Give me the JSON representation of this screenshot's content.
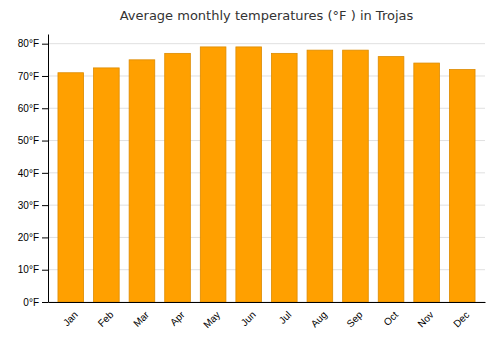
{
  "chart_data": {
    "type": "bar",
    "title": "Average monthly temperatures (°F ) in Trojas",
    "categories": [
      "Jan",
      "Feb",
      "Mar",
      "Apr",
      "May",
      "Jun",
      "Jul",
      "Aug",
      "Sep",
      "Oct",
      "Nov",
      "Dec"
    ],
    "values": [
      71,
      72.5,
      75,
      77,
      79,
      79,
      77,
      78,
      78,
      76,
      74,
      72
    ],
    "color": "#FFA000",
    "ylim": [
      0,
      83
    ],
    "yticks": [
      {
        "value": 0,
        "label": "0°F"
      },
      {
        "value": 10,
        "label": "10°F"
      },
      {
        "value": 20,
        "label": "20°F"
      },
      {
        "value": 30,
        "label": "30°F"
      },
      {
        "value": 40,
        "label": "40°F"
      },
      {
        "value": 50,
        "label": "50°F"
      },
      {
        "value": 60,
        "label": "60°F"
      },
      {
        "value": 70,
        "label": "70°F"
      },
      {
        "value": 80,
        "label": "80°F"
      }
    ],
    "grid": true
  }
}
